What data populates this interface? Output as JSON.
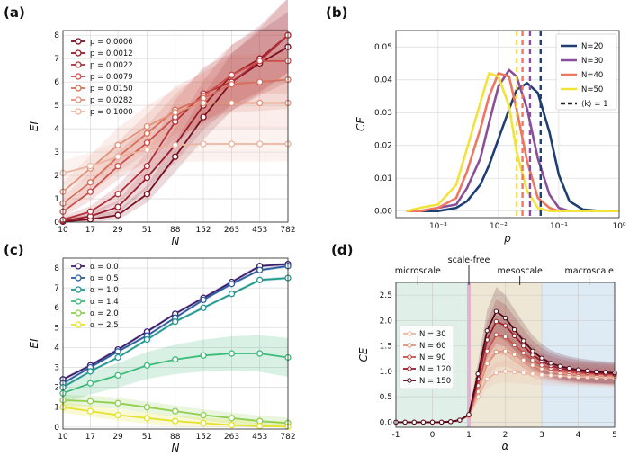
{
  "panel_labels": [
    "(a)",
    "(b)",
    "(c)",
    "(d)"
  ],
  "chart_data": [
    {
      "panel": "(a)",
      "type": "line",
      "xlabel": "N",
      "ylabel": "EI",
      "x_scale": "log",
      "x": [
        10,
        17,
        29,
        51,
        88,
        152,
        263,
        453,
        782
      ],
      "xticks": [
        "10",
        "17",
        "29",
        "51",
        "88",
        "152",
        "263",
        "453",
        "782"
      ],
      "ylim": [
        0,
        8.2
      ],
      "yticks": [
        0,
        1,
        2,
        3,
        4,
        5,
        6,
        7,
        8
      ],
      "grid": true,
      "legend_position": "upper-left",
      "series": [
        {
          "name": "p = 0.0006",
          "color": "#7a0f1f",
          "values": [
            0.02,
            0.12,
            0.3,
            1.2,
            2.8,
            4.5,
            6.0,
            6.8,
            7.5
          ]
        },
        {
          "name": "p = 0.0012",
          "color": "#9b1c2a",
          "values": [
            0.05,
            0.25,
            0.65,
            1.9,
            3.3,
            5.0,
            6.3,
            7.0,
            8.0
          ]
        },
        {
          "name": "p = 0.0022",
          "color": "#b3303a",
          "values": [
            0.1,
            0.45,
            1.2,
            2.4,
            4.3,
            5.5,
            6.0,
            6.9,
            8.0
          ]
        },
        {
          "name": "p = 0.0079",
          "color": "#c94f4a",
          "values": [
            0.45,
            1.3,
            2.4,
            3.4,
            4.5,
            5.4,
            6.3,
            6.9,
            6.9
          ]
        },
        {
          "name": "p = 0.0150",
          "color": "#d76f5c",
          "values": [
            0.8,
            1.7,
            2.8,
            3.8,
            4.8,
            5.3,
            5.9,
            6.0,
            6.1
          ]
        },
        {
          "name": "p = 0.0282",
          "color": "#e0927a",
          "values": [
            1.3,
            2.3,
            3.3,
            4.1,
            4.7,
            5.1,
            5.1,
            5.1,
            5.1
          ]
        },
        {
          "name": "p = 0.1000",
          "color": "#ebb4a0",
          "values": [
            2.1,
            2.4,
            2.8,
            3.1,
            3.3,
            3.35,
            3.35,
            3.35,
            3.35
          ]
        }
      ]
    },
    {
      "panel": "(b)",
      "type": "line",
      "xlabel": "p",
      "ylabel": "CE",
      "x_scale": "log",
      "xlim": [
        0.0002,
        1
      ],
      "xticks": [
        "10⁻³",
        "10⁻²",
        "10⁻¹",
        "10⁰"
      ],
      "ylim": [
        -0.002,
        0.055
      ],
      "yticks": [
        "0.00",
        "0.01",
        "0.02",
        "0.03",
        "0.04",
        "0.05"
      ],
      "grid": true,
      "legend_position": "upper-right",
      "x": [
        0.0003,
        0.0005,
        0.001,
        0.002,
        0.003,
        0.005,
        0.007,
        0.01,
        0.015,
        0.02,
        0.03,
        0.045,
        0.07,
        0.1,
        0.15,
        0.25,
        0.5,
        1.0
      ],
      "series": [
        {
          "name": "N=20",
          "color": "#1f3f73",
          "values": [
            0.0,
            0.0,
            0.0,
            0.001,
            0.003,
            0.008,
            0.014,
            0.022,
            0.031,
            0.037,
            0.039,
            0.036,
            0.024,
            0.011,
            0.003,
            0.0005,
            0.0,
            0.0
          ]
        },
        {
          "name": "N=30",
          "color": "#8a4f9a",
          "values": [
            0.0,
            0.0,
            0.001,
            0.002,
            0.007,
            0.016,
            0.027,
            0.038,
            0.043,
            0.041,
            0.031,
            0.016,
            0.005,
            0.001,
            0.0,
            0.0,
            0.0,
            0.0
          ]
        },
        {
          "name": "N=40",
          "color": "#ef7660",
          "values": [
            0.0,
            0.0,
            0.001,
            0.004,
            0.012,
            0.025,
            0.035,
            0.042,
            0.041,
            0.031,
            0.015,
            0.004,
            0.001,
            0.0,
            0.0,
            0.0,
            0.0,
            0.0
          ]
        },
        {
          "name": "N=50",
          "color": "#f2e33a",
          "values": [
            0.0,
            0.001,
            0.002,
            0.008,
            0.019,
            0.033,
            0.042,
            0.041,
            0.032,
            0.018,
            0.006,
            0.001,
            0.0,
            0.0,
            0.0,
            0.0,
            0.0,
            0.0
          ]
        }
      ],
      "legend_extra": "⟨k⟩ = 1",
      "reference_lines": [
        {
          "series": "N=20",
          "x": 0.05
        },
        {
          "series": "N=30",
          "x": 0.0333
        },
        {
          "series": "N=40",
          "x": 0.025
        },
        {
          "series": "N=50",
          "x": 0.02
        }
      ]
    },
    {
      "panel": "(c)",
      "type": "line",
      "xlabel": "N",
      "ylabel": "EI",
      "x_scale": "log",
      "x": [
        10,
        17,
        29,
        51,
        88,
        152,
        263,
        453,
        782
      ],
      "xticks": [
        "10",
        "17",
        "29",
        "51",
        "88",
        "152",
        "263",
        "453",
        "782"
      ],
      "ylim": [
        -0.1,
        8.5
      ],
      "yticks": [
        0,
        1,
        2,
        3,
        4,
        5,
        6,
        7,
        8
      ],
      "grid": true,
      "legend_position": "upper-left",
      "series": [
        {
          "name": "α = 0.0",
          "color": "#3b1f6e",
          "values": [
            2.4,
            3.1,
            3.9,
            4.8,
            5.7,
            6.5,
            7.3,
            8.1,
            8.2
          ]
        },
        {
          "name": "α = 0.5",
          "color": "#2f5e9e",
          "values": [
            2.2,
            3.0,
            3.8,
            4.6,
            5.5,
            6.4,
            7.2,
            7.9,
            8.1
          ]
        },
        {
          "name": "α = 1.0",
          "color": "#23988f",
          "values": [
            2.0,
            2.8,
            3.5,
            4.4,
            5.3,
            6.0,
            6.7,
            7.4,
            7.5
          ]
        },
        {
          "name": "α = 1.4",
          "color": "#3dbb7a",
          "values": [
            1.7,
            2.2,
            2.6,
            3.1,
            3.4,
            3.6,
            3.7,
            3.7,
            3.5
          ]
        },
        {
          "name": "α = 2.0",
          "color": "#8fcf4f",
          "values": [
            1.35,
            1.3,
            1.2,
            1.0,
            0.8,
            0.6,
            0.45,
            0.3,
            0.2
          ]
        },
        {
          "name": "α = 2.5",
          "color": "#e5e22f",
          "values": [
            1.0,
            0.8,
            0.6,
            0.45,
            0.3,
            0.2,
            0.1,
            0.05,
            0.02
          ]
        }
      ]
    },
    {
      "panel": "(d)",
      "type": "line",
      "xlabel": "α",
      "ylabel": "CE",
      "xlim": [
        -1,
        5
      ],
      "xticks": [
        "-1",
        "0",
        "1",
        "2",
        "3",
        "4",
        "5"
      ],
      "ylim": [
        -0.1,
        2.75
      ],
      "yticks": [
        "0.0",
        "0.5",
        "1.0",
        "1.5",
        "2.0",
        "2.5"
      ],
      "grid": true,
      "legend_position": "center-left",
      "regions": [
        {
          "label": "microscale",
          "from": -1,
          "to": 1,
          "color": "#d6ebe0"
        },
        {
          "label": "scale-free",
          "from": 0.95,
          "to": 1.05,
          "color": "#e8a9d3"
        },
        {
          "label": "mesoscale",
          "from": 1,
          "to": 3,
          "color": "#eadfc7"
        },
        {
          "label": "macroscale",
          "from": 3,
          "to": 5,
          "color": "#d3e3f0"
        }
      ],
      "x": [
        -1.0,
        -0.75,
        -0.5,
        -0.25,
        0.0,
        0.25,
        0.5,
        0.75,
        1.0,
        1.25,
        1.5,
        1.75,
        2.0,
        2.25,
        2.5,
        2.75,
        3.0,
        3.25,
        3.5,
        3.75,
        4.0,
        4.25,
        4.5,
        4.75,
        5.0
      ],
      "series": [
        {
          "name": "N = 30",
          "color": "#ebb4a0",
          "values": [
            0,
            0,
            0,
            0,
            0,
            0,
            0.01,
            0.04,
            0.12,
            0.5,
            0.85,
            0.97,
            1.0,
            0.99,
            0.97,
            0.95,
            0.93,
            0.92,
            0.91,
            0.9,
            0.89,
            0.89,
            0.88,
            0.88,
            0.87
          ]
        },
        {
          "name": "N = 60",
          "color": "#e0927a",
          "values": [
            0,
            0,
            0,
            0,
            0,
            0,
            0.01,
            0.04,
            0.13,
            0.6,
            1.15,
            1.38,
            1.4,
            1.33,
            1.22,
            1.12,
            1.05,
            1.0,
            0.97,
            0.95,
            0.94,
            0.93,
            0.92,
            0.91,
            0.9
          ]
        },
        {
          "name": "N = 90",
          "color": "#c94f4a",
          "values": [
            0,
            0,
            0,
            0,
            0,
            0,
            0.01,
            0.04,
            0.14,
            0.72,
            1.4,
            1.72,
            1.68,
            1.52,
            1.36,
            1.22,
            1.12,
            1.06,
            1.02,
            0.99,
            0.97,
            0.96,
            0.95,
            0.94,
            0.93
          ]
        },
        {
          "name": "N = 120",
          "color": "#9b1c2a",
          "values": [
            0,
            0,
            0,
            0,
            0,
            0,
            0.01,
            0.04,
            0.15,
            0.85,
            1.62,
            1.98,
            1.9,
            1.7,
            1.5,
            1.32,
            1.2,
            1.11,
            1.06,
            1.03,
            1.0,
            0.98,
            0.97,
            0.96,
            0.95
          ]
        },
        {
          "name": "N = 150",
          "color": "#4d0a1c",
          "values": [
            0,
            0,
            0,
            0,
            0,
            0,
            0.01,
            0.04,
            0.15,
            0.95,
            1.8,
            2.18,
            2.05,
            1.82,
            1.6,
            1.4,
            1.26,
            1.16,
            1.1,
            1.06,
            1.03,
            1.01,
            0.99,
            0.98,
            0.97
          ]
        }
      ]
    }
  ]
}
